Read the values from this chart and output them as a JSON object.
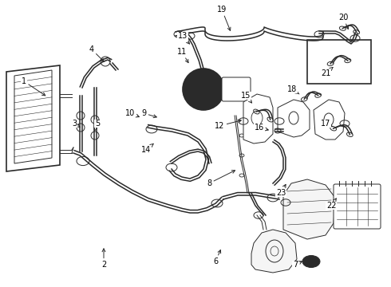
{
  "background_color": "#ffffff",
  "line_color": "#2a2a2a",
  "label_color": "#000000",
  "fig_width": 4.9,
  "fig_height": 3.6,
  "dpi": 100,
  "label_positions": {
    "1": [
      0.055,
      0.5,
      0.1,
      0.51
    ],
    "2": [
      0.268,
      0.938,
      0.268,
      0.9
    ],
    "3": [
      0.188,
      0.592,
      0.2,
      0.58
    ],
    "4": [
      0.235,
      0.268,
      0.242,
      0.298
    ],
    "5": [
      0.25,
      0.592,
      0.258,
      0.58
    ],
    "6": [
      0.555,
      0.928,
      0.568,
      0.91
    ],
    "7": [
      0.76,
      0.928,
      0.74,
      0.928
    ],
    "8": [
      0.54,
      0.758,
      0.558,
      0.742
    ],
    "9": [
      0.368,
      0.468,
      0.37,
      0.492
    ],
    "10": [
      0.335,
      0.468,
      0.345,
      0.492
    ],
    "11": [
      0.465,
      0.358,
      0.478,
      0.378
    ],
    "12": [
      0.562,
      0.548,
      0.555,
      0.53
    ],
    "13": [
      0.468,
      0.278,
      0.478,
      0.308
    ],
    "14": [
      0.375,
      0.688,
      0.388,
      0.672
    ],
    "15": [
      0.628,
      0.528,
      0.638,
      0.518
    ],
    "16": [
      0.665,
      0.605,
      0.682,
      0.602
    ],
    "17": [
      0.835,
      0.6,
      0.84,
      0.588
    ],
    "18": [
      0.748,
      0.468,
      0.762,
      0.482
    ],
    "19": [
      0.568,
      0.148,
      0.568,
      0.172
    ],
    "20": [
      0.875,
      0.188,
      0.875,
      0.208
    ],
    "21": [
      0.832,
      0.378,
      0.848,
      0.398
    ],
    "22": [
      0.852,
      0.705,
      0.848,
      0.695
    ],
    "23": [
      0.718,
      0.79,
      0.72,
      0.772
    ]
  }
}
